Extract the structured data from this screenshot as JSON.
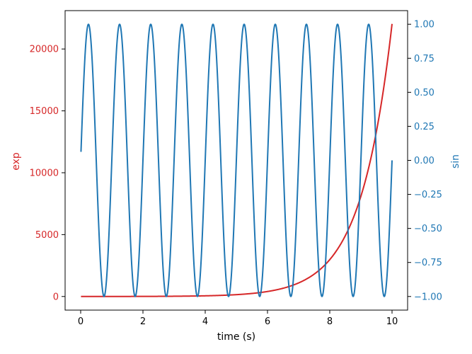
{
  "chart_data": {
    "type": "line",
    "xlabel": "time (s)",
    "x_ticks": [
      0,
      2,
      4,
      6,
      8,
      10
    ],
    "xlim": [
      -0.5,
      10.5
    ],
    "x": {
      "start": 0.01,
      "stop": 10.0,
      "step": 0.01
    },
    "left_axis": {
      "label": "exp",
      "color": "#d62728",
      "ylim": [
        -1100,
        23100
      ],
      "ticks": [
        0,
        5000,
        10000,
        15000,
        20000
      ]
    },
    "right_axis": {
      "label": "sin",
      "color": "#1f77b4",
      "ylim": [
        -1.1,
        1.1
      ],
      "ticks": [
        "1.00",
        "0.75",
        "0.50",
        "0.25",
        "0.00",
        "−0.25",
        "−0.50",
        "−0.75",
        "−1.00"
      ],
      "tick_values": [
        1.0,
        0.75,
        0.5,
        0.25,
        0.0,
        -0.25,
        -0.5,
        -0.75,
        -1.0
      ]
    },
    "series": [
      {
        "axis": "left",
        "formula": "y = exp(x)",
        "color": "#d62728",
        "sample_points": [
          [
            0,
            1
          ],
          [
            2,
            7.39
          ],
          [
            4,
            54.6
          ],
          [
            6,
            403.4
          ],
          [
            8,
            2981
          ],
          [
            9,
            8103
          ],
          [
            10,
            22026
          ]
        ]
      },
      {
        "axis": "right",
        "formula": "y = sin(2*pi*x)",
        "color": "#1f77b4",
        "sample_points": [
          [
            0.25,
            1
          ],
          [
            0.75,
            -1
          ],
          [
            1.25,
            1
          ],
          [
            1.75,
            -1
          ],
          [
            9.25,
            1
          ],
          [
            9.75,
            -1
          ],
          [
            10,
            -0.06
          ]
        ]
      }
    ]
  }
}
